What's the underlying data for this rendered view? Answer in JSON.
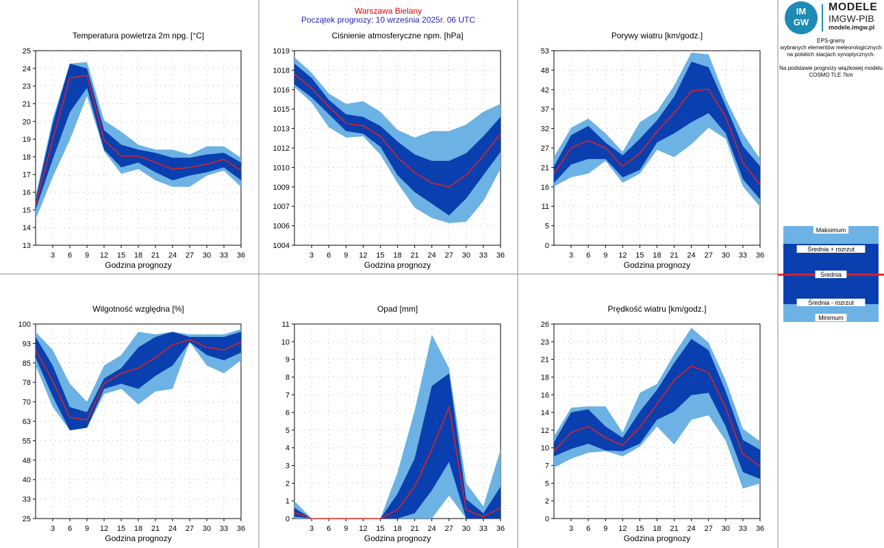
{
  "header": {
    "location": "Warszawa Bielany",
    "forecast_start": "Początek prognozy: 10 września 2025r. 06 UTC"
  },
  "logo": {
    "mark_top": "IM",
    "mark_bottom": "GW",
    "title": "MODELE",
    "org": "IMGW-PIB",
    "site": "modele.imgw.pl"
  },
  "info_lines": [
    "EPS-gramy",
    "wybranych elementów meteorologicznych",
    "na polskich stacjach  synoptycznych.",
    "",
    "Na podstawie prognozy wiązkowej modelu",
    "COSMO TLE 7km"
  ],
  "legend": {
    "labels": [
      "Maksimum",
      "Średnia + rozrzut",
      "Średnia",
      "Średnia - rozrzut",
      "Minimum"
    ]
  },
  "colors": {
    "light_band": "#6cb2e4",
    "dark_band": "#0a3fb0",
    "mean_line": "#dd2222",
    "grid": "#b0b0b0",
    "location_text": "#dd0000",
    "start_text": "#1f1fb8"
  },
  "chart_data": [
    {
      "type": "area",
      "title": "Temperatura powietrza 2m npg. [°C]",
      "xlabel": "Godzina prognozy",
      "ylabel": "",
      "x": [
        0,
        3,
        6,
        9,
        12,
        15,
        18,
        21,
        24,
        27,
        30,
        33,
        36
      ],
      "xticks": [
        3,
        6,
        9,
        12,
        15,
        18,
        21,
        24,
        27,
        30,
        33,
        36
      ],
      "ylim": [
        13,
        25
      ],
      "yticks": [
        "13",
        "14",
        "15",
        "16",
        "17",
        "18",
        "19",
        "20",
        "21",
        "23",
        "24",
        "25"
      ],
      "grid": true,
      "series": [
        {
          "name": "Maksimum",
          "values": [
            16.0,
            20.8,
            24.2,
            24.3,
            20.7,
            20.0,
            19.2,
            18.9,
            18.9,
            18.6,
            19.1,
            19.1,
            18.4
          ]
        },
        {
          "name": "Średnia + rozrzut",
          "values": [
            15.8,
            20.5,
            24.2,
            23.9,
            20.1,
            19.2,
            18.9,
            18.7,
            18.4,
            18.4,
            18.6,
            18.7,
            18.1
          ]
        },
        {
          "name": "Średnia",
          "values": [
            15.5,
            19.5,
            23.3,
            23.5,
            19.5,
            18.5,
            18.5,
            18.1,
            17.7,
            17.8,
            18.0,
            18.3,
            17.6
          ]
        },
        {
          "name": "Średnia - rozrzut",
          "values": [
            15.2,
            18.3,
            21.2,
            22.7,
            18.9,
            17.8,
            18.1,
            17.5,
            17.0,
            17.3,
            17.5,
            17.8,
            17.0
          ]
        },
        {
          "name": "Minimum",
          "values": [
            14.6,
            17.2,
            19.5,
            22.2,
            18.8,
            17.4,
            17.7,
            17.0,
            16.6,
            16.6,
            17.3,
            17.6,
            16.6
          ]
        }
      ]
    },
    {
      "type": "area",
      "title": "Ciśnienie atmosferyczne npm. [hPa]",
      "xlabel": "Godzina prognozy",
      "ylabel": "",
      "x": [
        0,
        3,
        6,
        9,
        12,
        15,
        18,
        21,
        24,
        27,
        30,
        33,
        36
      ],
      "xticks": [
        3,
        6,
        9,
        12,
        15,
        18,
        21,
        24,
        27,
        30,
        33,
        36
      ],
      "ylim": [
        1004,
        1019
      ],
      "yticks": [
        "1004",
        "1006",
        "1007",
        "1009",
        "1010",
        "1012",
        "1013",
        "1015",
        "1016",
        "1018",
        "1019"
      ],
      "grid": true,
      "series": [
        {
          "name": "Maksimum",
          "values": [
            1018.5,
            1017.3,
            1015.7,
            1014.9,
            1015.1,
            1014.3,
            1012.9,
            1012.3,
            1012.8,
            1012.8,
            1013.3,
            1014.3,
            1014.9
          ]
        },
        {
          "name": "Średnia + rozrzut",
          "values": [
            1018.0,
            1016.9,
            1015.2,
            1014.1,
            1013.9,
            1013.2,
            1012.0,
            1011.0,
            1010.5,
            1010.5,
            1011.1,
            1012.4,
            1013.9
          ]
        },
        {
          "name": "Średnia",
          "values": [
            1017.2,
            1016.1,
            1014.7,
            1013.4,
            1013.2,
            1012.4,
            1010.8,
            1009.6,
            1008.8,
            1008.5,
            1009.4,
            1010.9,
            1012.6
          ]
        },
        {
          "name": "Średnia - rozrzut",
          "values": [
            1016.4,
            1015.4,
            1014.1,
            1012.8,
            1012.6,
            1011.6,
            1009.4,
            1008.1,
            1007.2,
            1006.3,
            1007.6,
            1009.4,
            1011.2
          ]
        },
        {
          "name": "Minimum",
          "values": [
            1016.2,
            1015.0,
            1013.1,
            1012.3,
            1012.4,
            1011.0,
            1008.8,
            1006.9,
            1006.1,
            1005.7,
            1005.8,
            1007.4,
            1009.9
          ]
        }
      ]
    },
    {
      "type": "area",
      "title": "Porywy wiatru [km/godz.]",
      "xlabel": "Godzina prognozy",
      "ylabel": "",
      "x": [
        0,
        3,
        6,
        9,
        12,
        15,
        18,
        21,
        24,
        27,
        30,
        33,
        36
      ],
      "xticks": [
        3,
        6,
        9,
        12,
        15,
        18,
        21,
        24,
        27,
        30,
        33,
        36
      ],
      "ylim": [
        0,
        53
      ],
      "yticks": [
        "0",
        "5",
        "11",
        "16",
        "21",
        "27",
        "32",
        "37",
        "42",
        "48",
        "53"
      ],
      "grid": true,
      "series": [
        {
          "name": "Maksimum",
          "values": [
            24.0,
            32.0,
            34.5,
            30.5,
            25.5,
            33.5,
            36.5,
            43.5,
            52.5,
            52.0,
            40.0,
            30.5,
            23.5
          ]
        },
        {
          "name": "Średnia + rozrzut",
          "values": [
            21.5,
            30.0,
            32.5,
            28.0,
            24.5,
            29.0,
            34.0,
            40.5,
            50.0,
            48.5,
            38.0,
            27.0,
            21.5
          ]
        },
        {
          "name": "Średnia",
          "values": [
            19.5,
            26.5,
            28.5,
            26.5,
            21.5,
            25.0,
            31.0,
            36.0,
            42.0,
            42.5,
            35.0,
            22.5,
            16.5
          ]
        },
        {
          "name": "Średnia - rozrzut",
          "values": [
            17.0,
            22.0,
            23.5,
            23.5,
            18.5,
            20.5,
            28.0,
            30.5,
            33.5,
            36.0,
            30.5,
            18.0,
            12.5
          ]
        },
        {
          "name": "Minimum",
          "values": [
            16.0,
            18.5,
            19.5,
            23.0,
            17.0,
            19.5,
            26.0,
            24.0,
            27.5,
            32.0,
            29.0,
            16.0,
            10.5
          ]
        }
      ]
    },
    {
      "type": "area",
      "title": "Wilgotność względna [%]",
      "xlabel": "Godzina prognozy",
      "ylabel": "",
      "x": [
        0,
        3,
        6,
        9,
        12,
        15,
        18,
        21,
        24,
        27,
        30,
        33,
        36
      ],
      "xticks": [
        3,
        6,
        9,
        12,
        15,
        18,
        21,
        24,
        27,
        30,
        33,
        36
      ],
      "ylim": [
        25,
        100
      ],
      "yticks": [
        "25",
        "33",
        "40",
        "48",
        "55",
        "63",
        "70",
        "78",
        "85",
        "93",
        "100"
      ],
      "grid": true,
      "series": [
        {
          "name": "Maksimum",
          "values": [
            97,
            90,
            77,
            70,
            84,
            88,
            97,
            96,
            97,
            96,
            96,
            96,
            98
          ]
        },
        {
          "name": "Średnia + rozrzut",
          "values": [
            95,
            84,
            68,
            66,
            79,
            83,
            91,
            95,
            97,
            95,
            95,
            95,
            97
          ]
        },
        {
          "name": "Średnia",
          "values": [
            90,
            78,
            64,
            63,
            77,
            81,
            83,
            87,
            92,
            94,
            91,
            90,
            93
          ]
        },
        {
          "name": "Średnia - rozrzut",
          "values": [
            87,
            72,
            59,
            60,
            75,
            77,
            75,
            80,
            84,
            93,
            88,
            86,
            89
          ]
        },
        {
          "name": "Minimum",
          "values": [
            84,
            68,
            59,
            60,
            73,
            75,
            69,
            74,
            75,
            93,
            84,
            81,
            86
          ]
        }
      ]
    },
    {
      "type": "area",
      "title": "Opad [mm]",
      "xlabel": "Godzina prognozy",
      "ylabel": "",
      "x": [
        0,
        3,
        6,
        9,
        12,
        15,
        18,
        21,
        24,
        27,
        30,
        33,
        36
      ],
      "xticks": [
        3,
        6,
        9,
        12,
        15,
        18,
        21,
        24,
        27,
        30,
        33,
        36
      ],
      "ylim": [
        0,
        11
      ],
      "yticks": [
        "0",
        "1",
        "2",
        "3",
        "4",
        "5",
        "6",
        "7",
        "8",
        "9",
        "10",
        "11"
      ],
      "grid": true,
      "series": [
        {
          "name": "Maksimum",
          "values": [
            1.0,
            0,
            0,
            0,
            0,
            0,
            2.6,
            6.1,
            10.4,
            8.5,
            2.0,
            0.7,
            3.9
          ]
        },
        {
          "name": "Średnia + rozrzut",
          "values": [
            0.6,
            0,
            0,
            0,
            0,
            0,
            1.4,
            3.4,
            7.5,
            8.2,
            1.1,
            0.3,
            1.8
          ]
        },
        {
          "name": "Średnia",
          "values": [
            0.35,
            0,
            0,
            0,
            0,
            0,
            0.5,
            1.8,
            3.9,
            6.3,
            0.5,
            0.1,
            0.6
          ]
        },
        {
          "name": "Średnia - rozrzut",
          "values": [
            0.1,
            0,
            0,
            0,
            0,
            0,
            0,
            0.3,
            1.6,
            3.2,
            0,
            0,
            0
          ]
        },
        {
          "name": "Minimum",
          "values": [
            0,
            0,
            0,
            0,
            0,
            0,
            0,
            0,
            0,
            1.3,
            0,
            0,
            0
          ]
        }
      ]
    },
    {
      "type": "area",
      "title": "Prędkość wiatru [km/godz.]",
      "xlabel": "Godzina prognozy",
      "ylabel": "",
      "x": [
        0,
        3,
        6,
        9,
        12,
        15,
        18,
        21,
        24,
        27,
        30,
        33,
        36
      ],
      "xticks": [
        3,
        6,
        9,
        12,
        15,
        18,
        21,
        24,
        27,
        30,
        33,
        36
      ],
      "ylim": [
        0,
        26
      ],
      "yticks": [
        "0",
        "2",
        "5",
        "7",
        "10",
        "12",
        "14",
        "16",
        "18",
        "21",
        "23",
        "26"
      ],
      "grid": true,
      "series": [
        {
          "name": "Maksimum",
          "values": [
            11.0,
            14.8,
            15.0,
            15.0,
            11.5,
            16.8,
            18.0,
            22.0,
            25.5,
            23.5,
            18.5,
            12.0,
            10.3
          ]
        },
        {
          "name": "Średnia + rozrzut",
          "values": [
            10.2,
            14.2,
            14.6,
            12.3,
            10.8,
            14.3,
            17.2,
            20.8,
            24.0,
            22.5,
            17.0,
            10.5,
            9.2
          ]
        },
        {
          "name": "Średnia",
          "values": [
            9.0,
            11.5,
            12.3,
            10.8,
            9.8,
            12.2,
            15.3,
            18.5,
            20.4,
            19.5,
            14.8,
            8.6,
            7.0
          ]
        },
        {
          "name": "Średnia - rozrzut",
          "values": [
            8.3,
            9.3,
            10.0,
            9.1,
            9.0,
            10.0,
            13.2,
            14.3,
            16.5,
            16.8,
            12.3,
            6.2,
            5.3
          ]
        },
        {
          "name": "Minimum",
          "values": [
            6.8,
            8.0,
            8.8,
            9.0,
            8.3,
            9.6,
            12.3,
            9.9,
            13.2,
            13.8,
            10.4,
            4.0,
            4.7
          ]
        }
      ]
    }
  ]
}
